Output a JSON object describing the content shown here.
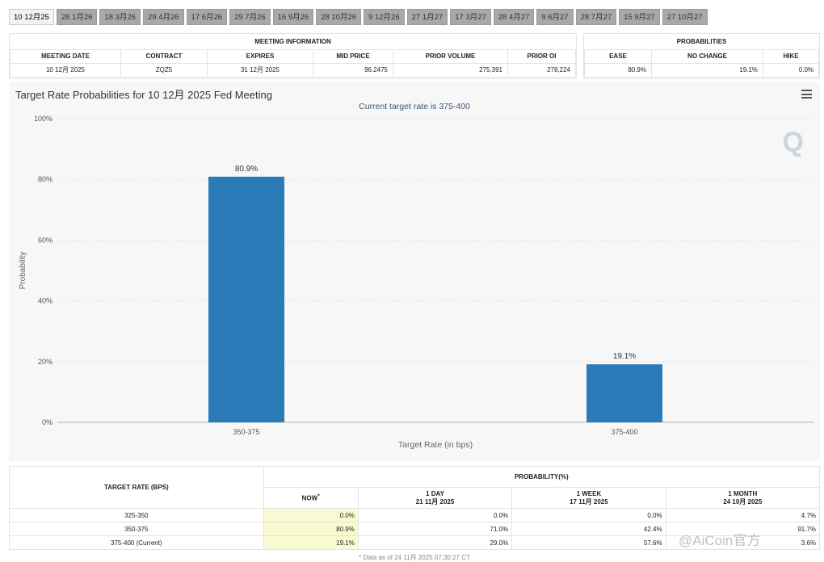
{
  "tabs": [
    "10 12月25",
    "28 1月26",
    "18 3月26",
    "29 4月26",
    "17 6月26",
    "29 7月26",
    "16 9月26",
    "28 10月26",
    "9 12月26",
    "27 1月27",
    "17 3月27",
    "28 4月27",
    "9 6月27",
    "28 7月27",
    "15 9月27",
    "27 10月27"
  ],
  "meeting_info": {
    "section_title": "MEETING INFORMATION",
    "headers": [
      "MEETING DATE",
      "CONTRACT",
      "EXPIRES",
      "MID PRICE",
      "PRIOR VOLUME",
      "PRIOR OI"
    ],
    "row": [
      "10 12月 2025",
      "ZQZ5",
      "31 12月 2025",
      "96.2475",
      "275,391",
      "278,224"
    ]
  },
  "probabilities": {
    "section_title": "PROBABILITIES",
    "headers": [
      "EASE",
      "NO CHANGE",
      "HIKE"
    ],
    "row": [
      "80.9%",
      "19.1%",
      "0.0%"
    ]
  },
  "chart_data": {
    "type": "bar",
    "title": "Target Rate Probabilities for 10 12月 2025 Fed Meeting",
    "subtitle": "Current target rate is 375-400",
    "categories": [
      "350-375",
      "375-400"
    ],
    "values": [
      80.9,
      19.1
    ],
    "data_labels": [
      "80.9%",
      "19.1%"
    ],
    "xlabel": "Target Rate (in bps)",
    "ylabel": "Probability",
    "ylim": [
      0,
      100
    ],
    "yticks": [
      "0%",
      "20%",
      "40%",
      "60%",
      "80%",
      "100%"
    ],
    "grid": true,
    "bar_color": "#2b7bb9"
  },
  "prob_table": {
    "col_header": "TARGET RATE (BPS)",
    "group_header": "PROBABILITY(%)",
    "cols": [
      {
        "label": "NOW",
        "sup": "*",
        "date": ""
      },
      {
        "label": "1 DAY",
        "date": "21 11月 2025"
      },
      {
        "label": "1 WEEK",
        "date": "17 11月 2025"
      },
      {
        "label": "1 MONTH",
        "date": "24 10月 2025"
      }
    ],
    "rows": [
      {
        "rate": "325-350",
        "values": [
          "0.0%",
          "0.0%",
          "0.0%",
          "4.7%"
        ]
      },
      {
        "rate": "350-375",
        "values": [
          "80.9%",
          "71.0%",
          "42.4%",
          "91.7%"
        ]
      },
      {
        "rate": "375-400 (Current)",
        "values": [
          "19.1%",
          "29.0%",
          "57.6%",
          "3.6%"
        ]
      }
    ],
    "footnote": "* Data as of 24 11月 2025 07:30:27 CT"
  },
  "watermark": "@AiCoin官方"
}
